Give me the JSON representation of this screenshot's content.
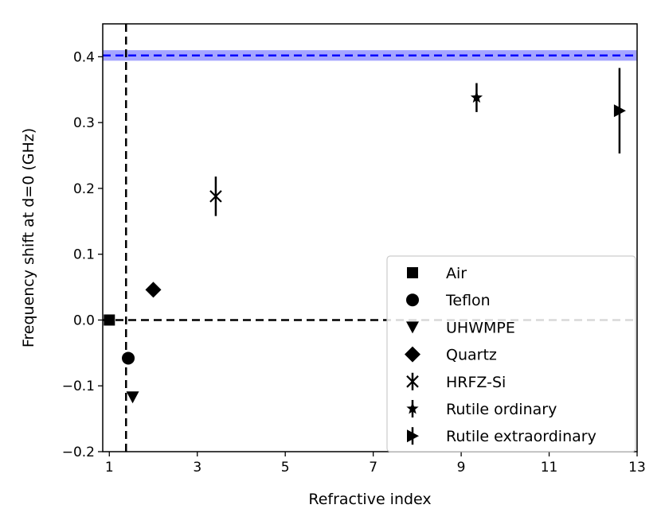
{
  "chart_data": {
    "type": "scatter",
    "xlabel": "Refractive index",
    "ylabel": "Frequency shift at d=0 (GHz)",
    "xlim": [
      0.85,
      13.0
    ],
    "ylim": [
      -0.2,
      0.45
    ],
    "xticks": [
      1,
      3,
      5,
      7,
      9,
      11,
      13
    ],
    "yticks": [
      -0.2,
      -0.1,
      0.0,
      0.1,
      0.2,
      0.3,
      0.4
    ],
    "ytick_labels": [
      "−0.2",
      "−0.1",
      "0.0",
      "0.1",
      "0.2",
      "0.3",
      "0.4"
    ],
    "grid": false,
    "legend_position": "lower right",
    "reference_lines": {
      "horizontal_dashed_y": 0.402,
      "horizontal_band": [
        0.394,
        0.41
      ],
      "band_color": "#8f8fff",
      "line_color": "#0000ff",
      "vertical_dashed_x": 1.38,
      "zero_dashed_y": 0.0
    },
    "series": [
      {
        "name": "Air",
        "marker": "square",
        "x": 1.0,
        "y": 0.0,
        "yerr": 0.0
      },
      {
        "name": "Teflon",
        "marker": "circle",
        "x": 1.43,
        "y": -0.058,
        "yerr": 0.0
      },
      {
        "name": "UHWMPE",
        "marker": "triangle-down",
        "x": 1.53,
        "y": -0.117,
        "yerr": 0.0
      },
      {
        "name": "Quartz",
        "marker": "diamond",
        "x": 2.0,
        "y": 0.046,
        "yerr": 0.0
      },
      {
        "name": "HRFZ-Si",
        "marker": "x",
        "x": 3.42,
        "y": 0.188,
        "yerr": 0.03
      },
      {
        "name": "Rutile ordinary",
        "marker": "star",
        "x": 9.35,
        "y": 0.338,
        "yerr": 0.022
      },
      {
        "name": "Rutile extraordinary",
        "marker": "triangle-right",
        "x": 12.6,
        "y": 0.318,
        "yerr": 0.065
      }
    ]
  }
}
